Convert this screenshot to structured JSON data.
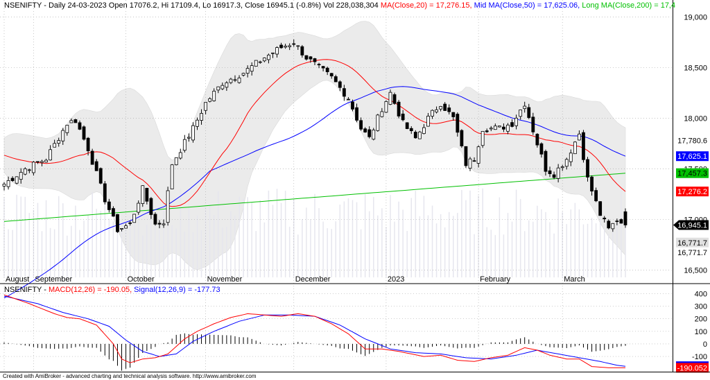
{
  "price_header": {
    "symbol": "NSENIFTY",
    "text": "NSENIFTY - Daily 24-03-2023 Open 17076.2, Hi 17109.4, Lo 16917.3, Close 16945.1 (-0.8%) Vol 228,038,304 ",
    "ma20": "MA(Close,20) = 17,276.15,",
    "ma50": " Mid MA(Close,50) = 17,625.06,",
    "ma200": " Long MA(Close,200) = 17,4"
  },
  "macd_header": {
    "prefix": "NSENIFTY - ",
    "macd": "MACD(12,26) = -190.05,",
    "signal": " Signal(12,26,9) = -177.73"
  },
  "footer": "Created with AmiBroker - advanced charting and technical analysis software. http://www.amibroker.com",
  "colors": {
    "ma20": "#ff0000",
    "ma50": "#0000ff",
    "ma200": "#00c000",
    "macd": "#ff0000",
    "signal": "#0000ff",
    "band": "#ebebeb"
  },
  "chart_data": [
    {
      "type": "candlestick",
      "title": "NSENIFTY - Daily",
      "ylim": [
        16400,
        19100
      ],
      "y_ticks": [
        16500,
        17000,
        17500,
        18000,
        18500,
        19000
      ],
      "y_tick_labels": [
        "16,500",
        "17,000",
        "17,500",
        "18,000",
        "18,500",
        "19,000"
      ],
      "x_labels": [
        {
          "label": "August",
          "index": 0
        },
        {
          "label": "September",
          "index": 7
        },
        {
          "label": "October",
          "index": 29
        },
        {
          "label": "November",
          "index": 48
        },
        {
          "label": "December",
          "index": 69
        },
        {
          "label": "2023",
          "index": 91
        },
        {
          "label": "February",
          "index": 113
        },
        {
          "label": "March",
          "index": 133
        }
      ],
      "bars": 149,
      "anchors_close": [
        [
          0,
          17350
        ],
        [
          5,
          17500
        ],
        [
          10,
          17600
        ],
        [
          15,
          17950
        ],
        [
          17,
          17980
        ],
        [
          20,
          17700
        ],
        [
          24,
          17200
        ],
        [
          27,
          16900
        ],
        [
          30,
          16950
        ],
        [
          33,
          17300
        ],
        [
          36,
          16950
        ],
        [
          38,
          16980
        ],
        [
          40,
          17550
        ],
        [
          45,
          17900
        ],
        [
          48,
          18150
        ],
        [
          52,
          18350
        ],
        [
          57,
          18450
        ],
        [
          62,
          18600
        ],
        [
          66,
          18700
        ],
        [
          69,
          18750
        ],
        [
          72,
          18600
        ],
        [
          75,
          18500
        ],
        [
          78,
          18400
        ],
        [
          82,
          18200
        ],
        [
          85,
          17900
        ],
        [
          87,
          17800
        ],
        [
          90,
          18100
        ],
        [
          92,
          18250
        ],
        [
          95,
          17950
        ],
        [
          98,
          17800
        ],
        [
          101,
          18000
        ],
        [
          104,
          18150
        ],
        [
          107,
          18000
        ],
        [
          110,
          17550
        ],
        [
          112,
          17600
        ],
        [
          114,
          17900
        ],
        [
          118,
          17900
        ],
        [
          121,
          17950
        ],
        [
          124,
          18150
        ],
        [
          127,
          17750
        ],
        [
          129,
          17500
        ],
        [
          131,
          17450
        ],
        [
          134,
          17600
        ],
        [
          137,
          17850
        ],
        [
          139,
          17400
        ],
        [
          142,
          17050
        ],
        [
          144,
          16900
        ],
        [
          146,
          17000
        ],
        [
          148,
          16945
        ]
      ],
      "last_bar": {
        "open": 17076.2,
        "high": 17109.4,
        "low": 16917.3,
        "close": 16945.1,
        "volume": 228038304
      },
      "series": [
        {
          "name": "MA(Close,20)",
          "last": 17276.15
        },
        {
          "name": "Mid MA(Close,50)",
          "last": 17625.06
        },
        {
          "name": "Long MA(Close,200)",
          "last": 17457.3
        }
      ],
      "bollinger_last": {
        "upper": 17780.6,
        "lower": 16771.7
      },
      "value_tags": [
        {
          "label": "17,780.6",
          "value": 17780.6,
          "bg": "#ffffff",
          "fg": "#000000"
        },
        {
          "label": "17,625.1",
          "value": 17625.1,
          "bg": "#0000ff",
          "fg": "#ffffff"
        },
        {
          "label": "17,457.3",
          "value": 17457.3,
          "bg": "#00c000",
          "fg": "#000000"
        },
        {
          "label": "17,276.2",
          "value": 17276.2,
          "bg": "#ff0000",
          "fg": "#ffffff"
        },
        {
          "label": "16,945.1",
          "value": 16945.1,
          "bg": "#000000",
          "fg": "#ffffff",
          "arrow": true
        },
        {
          "label": "16,771.7",
          "value": 16771.7,
          "bg": "#e0e0e0",
          "fg": "#000000"
        },
        {
          "label": "16,771.7",
          "value": 16771.7,
          "bg": "#ffffff",
          "fg": "#000000",
          "offset": 14
        }
      ]
    },
    {
      "type": "line",
      "title": "MACD(12,26) / Signal(12,26,9)",
      "ylim": [
        -210,
        430
      ],
      "y_ticks": [
        -100,
        0,
        100,
        200,
        300,
        400
      ],
      "y_tick_labels": [
        "-100",
        "0",
        "100",
        "200",
        "300",
        "400"
      ],
      "anchors_macd": [
        [
          0,
          390
        ],
        [
          6,
          320
        ],
        [
          12,
          240
        ],
        [
          15,
          210
        ],
        [
          18,
          200
        ],
        [
          22,
          150
        ],
        [
          26,
          0
        ],
        [
          28,
          -120
        ],
        [
          30,
          -150
        ],
        [
          33,
          -120
        ],
        [
          36,
          -110
        ],
        [
          39,
          -80
        ],
        [
          43,
          40
        ],
        [
          46,
          100
        ],
        [
          50,
          160
        ],
        [
          54,
          210
        ],
        [
          58,
          240
        ],
        [
          62,
          230
        ],
        [
          66,
          220
        ],
        [
          70,
          240
        ],
        [
          74,
          220
        ],
        [
          78,
          160
        ],
        [
          82,
          80
        ],
        [
          86,
          -40
        ],
        [
          90,
          -40
        ],
        [
          94,
          -60
        ],
        [
          100,
          -100
        ],
        [
          104,
          -90
        ],
        [
          108,
          -130
        ],
        [
          112,
          -140
        ],
        [
          116,
          -110
        ],
        [
          120,
          -90
        ],
        [
          124,
          -30
        ],
        [
          127,
          -50
        ],
        [
          130,
          -90
        ],
        [
          134,
          -120
        ],
        [
          137,
          -120
        ],
        [
          140,
          -180
        ],
        [
          144,
          -190
        ],
        [
          148,
          -190
        ]
      ],
      "anchors_signal": [
        [
          0,
          380
        ],
        [
          8,
          320
        ],
        [
          14,
          250
        ],
        [
          20,
          200
        ],
        [
          25,
          140
        ],
        [
          29,
          30
        ],
        [
          33,
          -60
        ],
        [
          37,
          -100
        ],
        [
          41,
          -80
        ],
        [
          45,
          20
        ],
        [
          50,
          100
        ],
        [
          56,
          180
        ],
        [
          62,
          230
        ],
        [
          68,
          230
        ],
        [
          74,
          220
        ],
        [
          80,
          150
        ],
        [
          86,
          40
        ],
        [
          92,
          -40
        ],
        [
          98,
          -70
        ],
        [
          104,
          -80
        ],
        [
          110,
          -110
        ],
        [
          116,
          -120
        ],
        [
          122,
          -90
        ],
        [
          127,
          -50
        ],
        [
          132,
          -80
        ],
        [
          137,
          -110
        ],
        [
          142,
          -140
        ],
        [
          146,
          -170
        ],
        [
          148,
          -178
        ]
      ],
      "series": [
        {
          "name": "MACD(12,26)",
          "last": -190.05
        },
        {
          "name": "Signal(12,26,9)",
          "last": -177.73
        }
      ],
      "value_tags": [
        {
          "label": "-177.725",
          "value": -177.725,
          "bg": "#0000ff",
          "fg": "#ffffff"
        },
        {
          "label": "-190.052",
          "value": -190.052,
          "bg": "#ff0000",
          "fg": "#ffffff"
        }
      ]
    }
  ]
}
